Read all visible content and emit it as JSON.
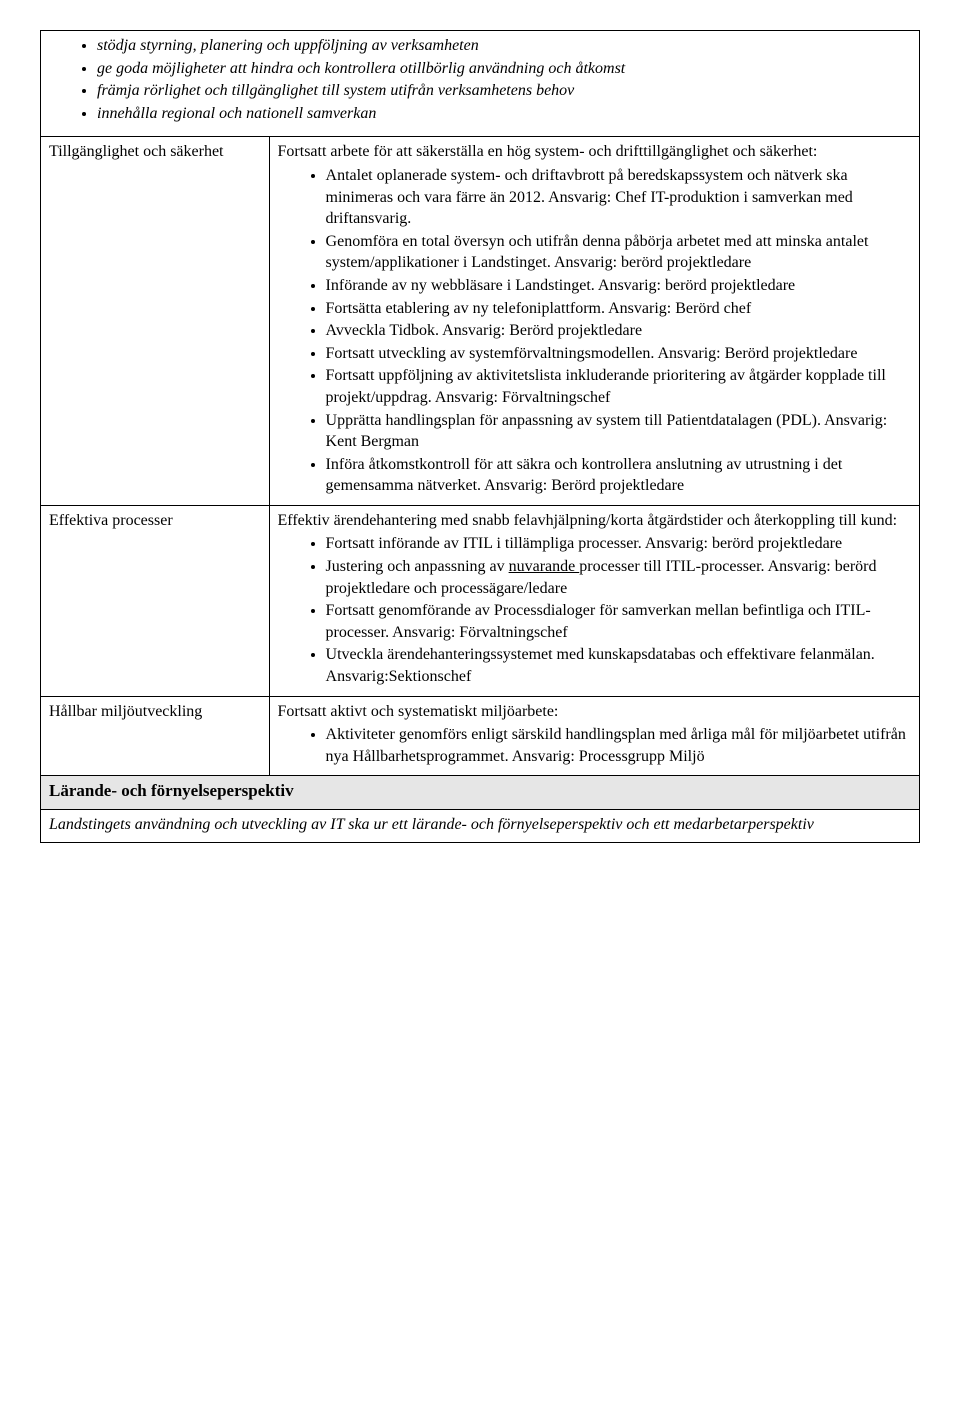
{
  "top_bullets": [
    "stödja styrning, planering och uppföljning av verksamheten",
    "ge goda möjligheter att hindra och kontrollera otillbörlig användning och åtkomst",
    "främja rörlighet och tillgänglighet till system utifrån verksamhetens behov",
    "innehålla regional och nationell samverkan"
  ],
  "rows": [
    {
      "label": "Tillgänglighet och säkerhet",
      "intro": "Fortsatt arbete för att säkerställa en hög system- och drifttillgänglighet och säkerhet:",
      "items": [
        "Antalet oplanerade system- och driftavbrott på beredskapssystem och nätverk ska minimeras och vara färre än 2012. Ansvarig: Chef IT-produktion i samverkan med driftansvarig.",
        "Genomföra en total översyn och utifrån denna påbörja arbetet med att minska antalet system/applikationer i Landstinget. Ansvarig: berörd projektledare",
        "Införande av ny webbläsare i Landstinget. Ansvarig: berörd projektledare",
        "Fortsätta etablering av ny telefoniplattform. Ansvarig: Berörd chef",
        "Avveckla Tidbok. Ansvarig: Berörd projektledare",
        "Fortsatt utveckling av systemförvaltningsmodellen. Ansvarig: Berörd projektledare",
        "Fortsatt uppföljning av aktivitetslista inkluderande prioritering av åtgärder kopplade till projekt/uppdrag. Ansvarig: Förvaltningschef",
        "Upprätta handlingsplan för anpassning av system till Patientdatalagen (PDL). Ansvarig: Kent Bergman",
        "Införa åtkomstkontroll för att säkra och kontrollera anslutning av utrustning i det gemensamma nätverket. Ansvarig: Berörd projektledare"
      ]
    },
    {
      "label": "Effektiva processer",
      "intro": "Effektiv ärendehantering med snabb felavhjälpning/korta åtgärdstider och återkoppling till kund:",
      "items_html": [
        "Fortsatt införande av ITIL i tillämpliga processer. Ansvarig: berörd projektledare",
        "Justering och anpassning av <span class=\"underline\">nuvarande </span>processer till ITIL-processer. Ansvarig: berörd projektledare och processägare/ledare",
        "Fortsatt genomförande av Processdialoger för samverkan mellan befintliga och ITIL-processer. Ansvarig: Förvaltningschef",
        "Utveckla ärendehanteringssystemet med kunskapsdatabas och effektivare felanmälan. Ansvarig:Sektionschef"
      ]
    },
    {
      "label": "Hållbar miljöutveckling",
      "intro": "Fortsatt aktivt och systematiskt miljöarbete:",
      "items": [
        "Aktiviteter genomförs enligt särskild handlingsplan med årliga mål för miljöarbetet utifrån nya Hållbarhetsprogrammet. Ansvarig: Processgrupp Miljö"
      ]
    }
  ],
  "section_header": "Lärande- och förnyelseperspektiv",
  "footer_paragraph": "Landstingets användning och utveckling av IT ska ur ett lärande- och förnyelseperspektiv och ett medarbetarperspektiv"
}
